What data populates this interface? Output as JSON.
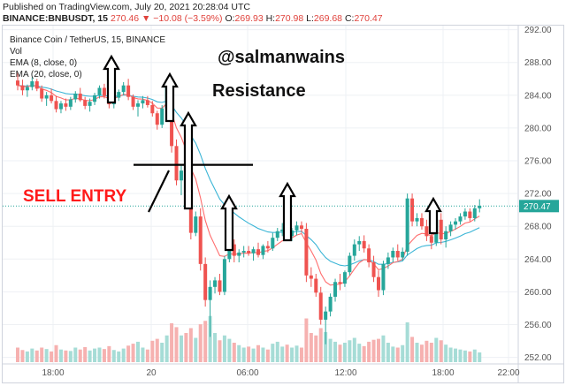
{
  "header": {
    "published": "Published on TradingView.com, July 20, 2021 20:28:04 UTC",
    "symbol": "BINANCE:BNBUSDT, 15",
    "last": "270.46",
    "change": "▼ −10.08 (−3.59%)",
    "o_label": "O:",
    "o_val": "269.93",
    "h_label": "H:",
    "h_val": "270.98",
    "l_label": "L:",
    "l_val": "269.68",
    "c_label": "C:",
    "c_val": "270.47"
  },
  "legend": {
    "title": "Binance Coin / TetherUS, 15, BINANCE",
    "vol": "Vol",
    "ema8": "EMA (8, close, 0)",
    "ema20": "EMA (20, close, 0)"
  },
  "annotations": {
    "watermark": "@salmanwains",
    "resistance": "Resistance",
    "sell": "SELL ENTRY"
  },
  "colors": {
    "up": "#26a69a",
    "down": "#ef5350",
    "ema8": "#ff6d6d",
    "ema20": "#3bb5d6",
    "sell": "#ff1a1a",
    "price_tag": "#26a69a"
  },
  "chart_data": {
    "type": "candlestick",
    "y_ticks": [
      252,
      256,
      260,
      264,
      268,
      272,
      276,
      280,
      284,
      288,
      292
    ],
    "ylim": [
      251.2,
      292.5
    ],
    "x_tick_labels": [
      "18:00",
      "20",
      "06:00",
      "12:00",
      "18:00",
      "22:00"
    ],
    "current_price": "270.47",
    "resistance_level": 275.5,
    "candles": [
      [
        285.8,
        286.8,
        284.6,
        285.2
      ],
      [
        285.2,
        285.9,
        284.0,
        284.6
      ],
      [
        284.6,
        285.3,
        283.8,
        285.0
      ],
      [
        285.0,
        286.2,
        284.6,
        285.7
      ],
      [
        285.7,
        286.0,
        284.5,
        284.8
      ],
      [
        284.8,
        285.2,
        283.2,
        283.6
      ],
      [
        283.6,
        284.4,
        282.7,
        284.0
      ],
      [
        284.0,
        284.8,
        283.0,
        283.3
      ],
      [
        283.3,
        283.9,
        281.9,
        282.3
      ],
      [
        282.3,
        283.3,
        281.8,
        283.0
      ],
      [
        283.0,
        283.6,
        282.1,
        282.6
      ],
      [
        282.6,
        283.8,
        282.2,
        283.5
      ],
      [
        283.5,
        284.5,
        283.1,
        284.2
      ],
      [
        284.2,
        284.9,
        283.2,
        283.4
      ],
      [
        283.4,
        283.8,
        282.3,
        282.7
      ],
      [
        282.7,
        283.6,
        282.0,
        283.2
      ],
      [
        283.2,
        284.3,
        282.8,
        284.0
      ],
      [
        284.0,
        285.2,
        283.6,
        284.9
      ],
      [
        284.9,
        285.4,
        283.6,
        283.9
      ],
      [
        283.9,
        284.3,
        282.4,
        282.9
      ],
      [
        282.9,
        284.0,
        282.4,
        283.7
      ],
      [
        283.7,
        284.7,
        283.3,
        284.4
      ],
      [
        284.4,
        285.6,
        284.0,
        285.2
      ],
      [
        285.2,
        286.0,
        283.4,
        283.8
      ],
      [
        283.8,
        284.1,
        282.2,
        282.6
      ],
      [
        282.6,
        283.4,
        281.4,
        283.0
      ],
      [
        283.0,
        283.9,
        282.4,
        283.4
      ],
      [
        283.4,
        283.9,
        282.5,
        282.8
      ],
      [
        282.8,
        283.3,
        281.4,
        281.8
      ],
      [
        281.8,
        282.1,
        279.8,
        280.4
      ],
      [
        280.4,
        282.8,
        280.0,
        282.4
      ],
      [
        282.4,
        285.4,
        282.0,
        285.0
      ],
      [
        285.0,
        286.0,
        277.0,
        277.8
      ],
      [
        277.8,
        278.6,
        273.0,
        273.6
      ],
      [
        273.6,
        275.4,
        271.8,
        274.8
      ],
      [
        274.8,
        275.5,
        271.2,
        272.0
      ],
      [
        272.0,
        272.8,
        266.4,
        267.2
      ],
      [
        267.2,
        269.8,
        266.8,
        269.2
      ],
      [
        269.2,
        270.2,
        262.6,
        263.4
      ],
      [
        263.4,
        264.2,
        258.2,
        259.0
      ],
      [
        259.0,
        261.4,
        254.5,
        260.6
      ],
      [
        260.6,
        261.8,
        259.8,
        261.4
      ],
      [
        261.4,
        262.2,
        259.6,
        260.0
      ],
      [
        260.0,
        264.4,
        259.6,
        264.0
      ],
      [
        264.0,
        266.8,
        263.6,
        265.8
      ],
      [
        265.8,
        266.4,
        263.6,
        264.4
      ],
      [
        264.4,
        265.2,
        263.6,
        264.8
      ],
      [
        264.8,
        265.6,
        264.2,
        265.0
      ],
      [
        265.0,
        265.6,
        264.4,
        264.7
      ],
      [
        264.7,
        265.5,
        263.8,
        265.2
      ],
      [
        265.2,
        266.0,
        264.2,
        264.5
      ],
      [
        264.5,
        265.8,
        264.0,
        265.6
      ],
      [
        265.6,
        266.2,
        264.8,
        265.3
      ],
      [
        265.3,
        267.2,
        265.0,
        266.6
      ],
      [
        266.6,
        267.8,
        266.2,
        267.4
      ],
      [
        267.4,
        268.4,
        266.8,
        267.6
      ],
      [
        267.6,
        268.2,
        266.4,
        266.8
      ],
      [
        266.8,
        267.8,
        266.2,
        267.5
      ],
      [
        267.5,
        268.6,
        266.9,
        268.1
      ],
      [
        268.1,
        268.6,
        267.2,
        267.7
      ],
      [
        267.7,
        268.4,
        261.2,
        262.0
      ],
      [
        262.0,
        263.0,
        260.6,
        261.6
      ],
      [
        261.6,
        262.2,
        259.4,
        259.9
      ],
      [
        259.9,
        260.6,
        256.0,
        256.6
      ],
      [
        256.6,
        258.2,
        253.6,
        257.6
      ],
      [
        257.6,
        259.8,
        257.0,
        259.4
      ],
      [
        259.4,
        261.6,
        258.8,
        261.2
      ],
      [
        261.2,
        262.2,
        260.2,
        261.0
      ],
      [
        261.0,
        262.6,
        260.6,
        262.4
      ],
      [
        262.4,
        264.8,
        262.0,
        264.4
      ],
      [
        264.4,
        266.4,
        263.8,
        265.8
      ],
      [
        265.8,
        266.8,
        265.0,
        266.2
      ],
      [
        266.2,
        266.9,
        264.8,
        265.3
      ],
      [
        265.3,
        265.8,
        263.0,
        263.6
      ],
      [
        263.6,
        264.4,
        261.2,
        261.8
      ],
      [
        261.8,
        262.6,
        259.4,
        260.2
      ],
      [
        260.2,
        263.8,
        259.6,
        263.4
      ],
      [
        263.4,
        264.8,
        262.8,
        264.2
      ],
      [
        264.2,
        265.4,
        263.6,
        265.0
      ],
      [
        265.0,
        265.8,
        263.8,
        264.2
      ],
      [
        264.2,
        265.4,
        263.8,
        264.9
      ],
      [
        264.9,
        272.0,
        264.4,
        271.4
      ],
      [
        271.4,
        272.0,
        268.0,
        268.6
      ],
      [
        268.6,
        269.6,
        268.0,
        269.0
      ],
      [
        269.0,
        269.6,
        267.6,
        268.0
      ],
      [
        268.0,
        268.8,
        266.2,
        266.8
      ],
      [
        266.8,
        267.6,
        265.2,
        266.0
      ],
      [
        266.0,
        269.2,
        265.6,
        268.8
      ],
      [
        268.8,
        269.6,
        265.8,
        266.4
      ],
      [
        266.4,
        268.0,
        265.4,
        267.4
      ],
      [
        267.4,
        268.6,
        266.8,
        268.2
      ],
      [
        268.2,
        269.0,
        267.6,
        268.6
      ],
      [
        268.6,
        269.6,
        268.2,
        269.2
      ],
      [
        269.2,
        270.2,
        268.8,
        269.8
      ],
      [
        269.8,
        270.2,
        268.6,
        269.0
      ],
      [
        269.0,
        270.6,
        268.6,
        270.2
      ],
      [
        270.2,
        271.3,
        269.7,
        270.5
      ]
    ],
    "volume": [
      0.3,
      0.25,
      0.22,
      0.28,
      0.24,
      0.3,
      0.27,
      0.22,
      0.35,
      0.26,
      0.24,
      0.23,
      0.3,
      0.26,
      0.31,
      0.24,
      0.28,
      0.3,
      0.27,
      0.33,
      0.25,
      0.22,
      0.28,
      0.34,
      0.38,
      0.42,
      0.3,
      0.26,
      0.44,
      0.48,
      0.4,
      0.55,
      0.8,
      0.72,
      0.55,
      0.6,
      0.7,
      0.5,
      0.78,
      0.85,
      0.95,
      0.6,
      0.45,
      0.55,
      0.48,
      0.4,
      0.35,
      0.3,
      0.32,
      0.28,
      0.35,
      0.3,
      0.26,
      0.38,
      0.42,
      0.32,
      0.36,
      0.3,
      0.34,
      0.3,
      0.9,
      0.6,
      0.55,
      0.7,
      0.62,
      0.48,
      0.42,
      0.36,
      0.4,
      0.45,
      0.5,
      0.38,
      0.33,
      0.42,
      0.46,
      0.48,
      0.55,
      0.4,
      0.32,
      0.3,
      0.35,
      0.82,
      0.52,
      0.4,
      0.36,
      0.44,
      0.4,
      0.5,
      0.45,
      0.36,
      0.3,
      0.28,
      0.26,
      0.24,
      0.22,
      0.26,
      0.2
    ]
  }
}
